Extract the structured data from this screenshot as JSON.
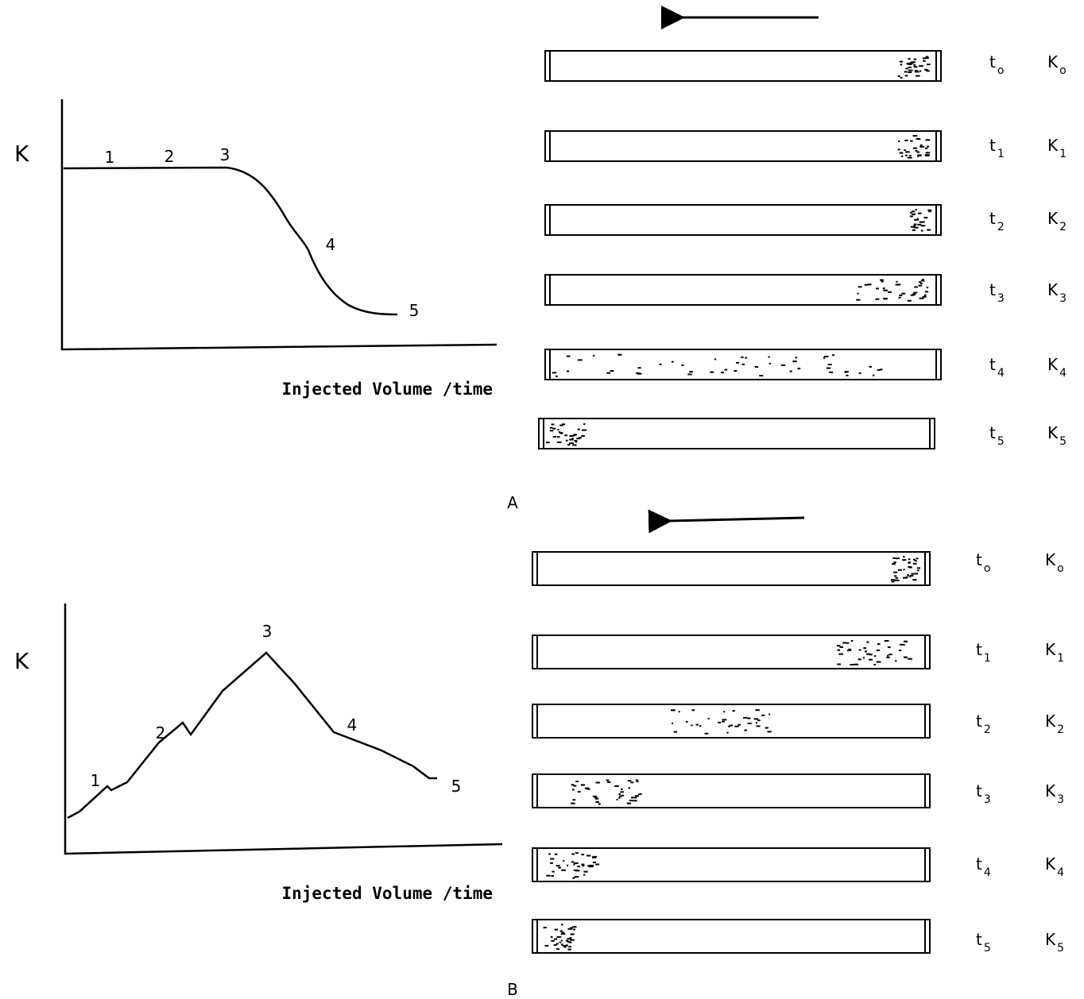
{
  "panels": [
    {
      "y_label": "K",
      "x_label": "Injected Volume /time",
      "point_labels": [
        "1",
        "2",
        "3",
        "4",
        "5"
      ],
      "panel_label": "A",
      "tubes": [
        {
          "t": {
            "base": "t",
            "sub": "o"
          },
          "k": {
            "base": "K",
            "sub": "o"
          }
        },
        {
          "t": {
            "base": "t",
            "sub": "1"
          },
          "k": {
            "base": "K",
            "sub": "1"
          }
        },
        {
          "t": {
            "base": "t",
            "sub": "2"
          },
          "k": {
            "base": "K",
            "sub": "2"
          }
        },
        {
          "t": {
            "base": "t",
            "sub": "3"
          },
          "k": {
            "base": "K",
            "sub": "3"
          }
        },
        {
          "t": {
            "base": "t",
            "sub": "4"
          },
          "k": {
            "base": "K",
            "sub": "4"
          }
        },
        {
          "t": {
            "base": "t",
            "sub": "5"
          },
          "k": {
            "base": "K",
            "sub": "5"
          }
        }
      ]
    },
    {
      "y_label": "K",
      "x_label": "Injected Volume /time",
      "point_labels": [
        "1",
        "2",
        "3",
        "4",
        "5"
      ],
      "panel_label": "B",
      "tubes": [
        {
          "t": {
            "base": "t",
            "sub": "o"
          },
          "k": {
            "base": "K",
            "sub": "o"
          }
        },
        {
          "t": {
            "base": "t",
            "sub": "1"
          },
          "k": {
            "base": "K",
            "sub": "1"
          }
        },
        {
          "t": {
            "base": "t",
            "sub": "2"
          },
          "k": {
            "base": "K",
            "sub": "2"
          }
        },
        {
          "t": {
            "base": "t",
            "sub": "3"
          },
          "k": {
            "base": "K",
            "sub": "3"
          }
        },
        {
          "t": {
            "base": "t",
            "sub": "4"
          },
          "k": {
            "base": "K",
            "sub": "4"
          }
        },
        {
          "t": {
            "base": "t",
            "sub": "5"
          },
          "k": {
            "base": "K",
            "sub": "5"
          }
        }
      ]
    }
  ]
}
